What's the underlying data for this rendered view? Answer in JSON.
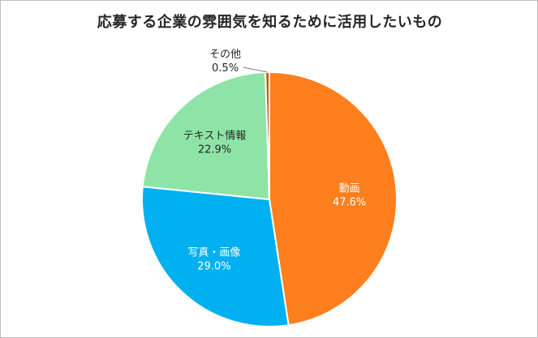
{
  "chart_data": {
    "type": "pie",
    "title": "応募する企業の雰囲気を知るために活用したいもの",
    "slices": [
      {
        "name": "動画",
        "value": 47.6,
        "value_label": "47.6%",
        "color": "#fd7f1e",
        "text_color": "#ffffff"
      },
      {
        "name": "写真・画像",
        "value": 29.0,
        "value_label": "29.0%",
        "color": "#00b0f0",
        "text_color": "#ffffff"
      },
      {
        "name": "テキスト情報",
        "value": 22.9,
        "value_label": "22.9%",
        "color": "#8ee4a6",
        "text_color": "#262626"
      },
      {
        "name": "その他",
        "value": 0.5,
        "value_label": "0.5%",
        "color": "#c55a11",
        "text_color": "#262626"
      }
    ]
  }
}
